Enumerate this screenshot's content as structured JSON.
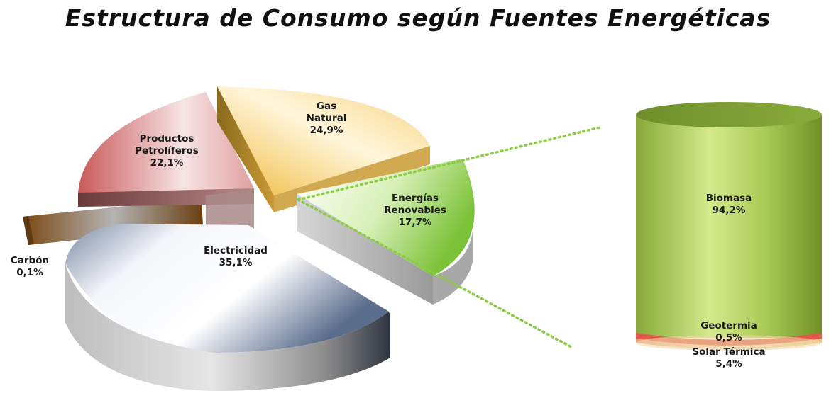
{
  "chart_data": [
    {
      "type": "pie",
      "title": "Estructura de Consumo según Fuentes Energéticas",
      "slices": [
        {
          "label_lines": [
            "Gas",
            "Natural"
          ],
          "value_text": "24,9%",
          "value": 24.9,
          "color": "#f2c55a"
        },
        {
          "label_lines": [
            "Energías",
            "Renovables"
          ],
          "value_text": "17,7%",
          "value": 17.7,
          "color": "#8ccb46"
        },
        {
          "label_lines": [
            "Electricidad"
          ],
          "value_text": "35,1%",
          "value": 35.1,
          "color": "#6a7d9a"
        },
        {
          "label_lines": [
            "Carbón"
          ],
          "value_text": "0,1%",
          "value": 0.1,
          "color": "#7a4b12"
        },
        {
          "label_lines": [
            "Productos",
            "Petrolíferos"
          ],
          "value_text": "22,1%",
          "value": 22.1,
          "color": "#cc6a6a"
        }
      ]
    },
    {
      "type": "bar",
      "stacked": true,
      "parent": "Energías Renovables",
      "segments": [
        {
          "label_lines": [
            "Biomasa"
          ],
          "value_text": "94,2%",
          "value": 94.2,
          "color": "#8fb03c"
        },
        {
          "label_lines": [
            "Geotermia"
          ],
          "value_text": "0,5%",
          "value": 0.5,
          "color": "#e05a4a"
        },
        {
          "label_lines": [
            "Solar Térmica"
          ],
          "value_text": "5,4%",
          "value": 5.4,
          "color": "#f3d08a"
        }
      ]
    }
  ]
}
